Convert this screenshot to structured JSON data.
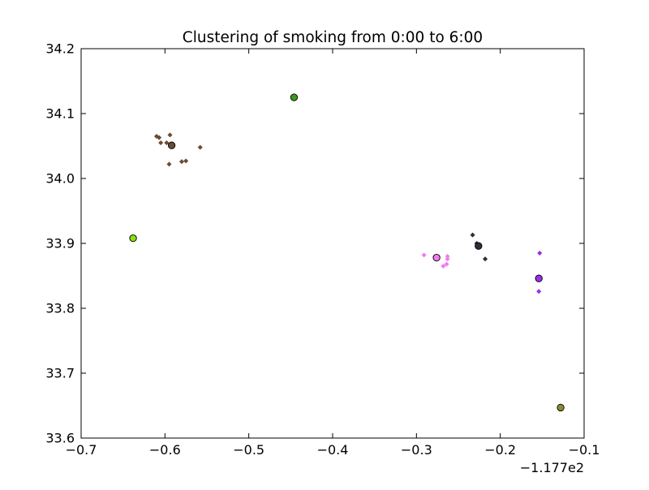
{
  "chart_data": {
    "type": "scatter",
    "title": "Clustering of smoking from 0:00 to 6:00",
    "xlabel": "",
    "ylabel": "",
    "x_offset_text": "−1.177e2",
    "xlim": [
      -0.7,
      -0.1
    ],
    "ylim": [
      33.6,
      34.2
    ],
    "xticks": [
      -0.7,
      -0.6,
      -0.5,
      -0.4,
      -0.3,
      -0.2,
      -0.1
    ],
    "xtick_labels": [
      "−0.7",
      "−0.6",
      "−0.5",
      "−0.4",
      "−0.3",
      "−0.2",
      "−0.1"
    ],
    "yticks": [
      33.6,
      33.7,
      33.8,
      33.9,
      34.0,
      34.1,
      34.2
    ],
    "ytick_labels": [
      "33.6",
      "33.7",
      "33.8",
      "33.9",
      "34.0",
      "34.1",
      "34.2"
    ],
    "grid": false,
    "legend": "none",
    "clusters": [
      {
        "color": "#6b4a35",
        "centroid": {
          "x": -0.592,
          "y": 34.051
        },
        "points": [
          {
            "x": -0.61,
            "y": 34.065
          },
          {
            "x": -0.607,
            "y": 34.063
          },
          {
            "x": -0.605,
            "y": 34.055
          },
          {
            "x": -0.598,
            "y": 34.055
          },
          {
            "x": -0.594,
            "y": 34.067
          },
          {
            "x": -0.595,
            "y": 34.022
          },
          {
            "x": -0.58,
            "y": 34.026
          },
          {
            "x": -0.575,
            "y": 34.027
          },
          {
            "x": -0.558,
            "y": 34.048
          }
        ]
      },
      {
        "color": "#3a9a1f",
        "centroid": {
          "x": -0.446,
          "y": 34.125
        },
        "points": []
      },
      {
        "color": "#88e010",
        "centroid": {
          "x": -0.638,
          "y": 33.908
        },
        "points": []
      },
      {
        "color": "#f07cf0",
        "centroid": {
          "x": -0.276,
          "y": 33.878
        },
        "points": [
          {
            "x": -0.291,
            "y": 33.882
          },
          {
            "x": -0.268,
            "y": 33.865
          },
          {
            "x": -0.264,
            "y": 33.868
          },
          {
            "x": -0.263,
            "y": 33.876
          },
          {
            "x": -0.263,
            "y": 33.88
          }
        ]
      },
      {
        "color": "#2e2e3c",
        "centroid": {
          "x": -0.226,
          "y": 33.896
        },
        "points": [
          {
            "x": -0.233,
            "y": 33.913
          },
          {
            "x": -0.218,
            "y": 33.876
          },
          {
            "x": -0.228,
            "y": 33.9
          }
        ]
      },
      {
        "color": "#9a2ef0",
        "centroid": {
          "x": -0.154,
          "y": 33.846
        },
        "points": [
          {
            "x": -0.153,
            "y": 33.885
          },
          {
            "x": -0.154,
            "y": 33.826
          }
        ]
      },
      {
        "color": "#8a8a30",
        "centroid": {
          "x": -0.128,
          "y": 33.647
        },
        "points": []
      }
    ]
  }
}
